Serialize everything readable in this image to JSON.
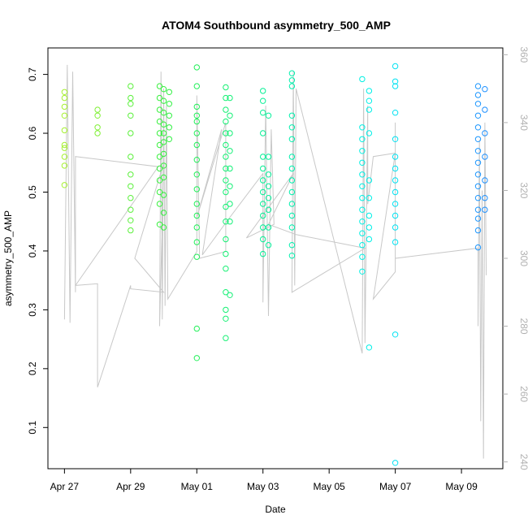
{
  "chart_data": {
    "type": "scatter",
    "title": "ATOM4 Southbound asymmetry_500_AMP",
    "xlabel": "Date",
    "ylabel": "asymmetry_500_AMP",
    "xlim": [
      "2015-04-26T12:00",
      "2015-05-10T06:00"
    ],
    "ylim": [
      0.03,
      0.745
    ],
    "x_ticks": [
      {
        "date": "2015-04-27",
        "label": "Apr 27"
      },
      {
        "date": "2015-04-29",
        "label": "Apr 29"
      },
      {
        "date": "2015-05-01",
        "label": "May 01"
      },
      {
        "date": "2015-05-03",
        "label": "May 03"
      },
      {
        "date": "2015-05-05",
        "label": "May 05"
      },
      {
        "date": "2015-05-07",
        "label": "May 07"
      },
      {
        "date": "2015-05-09",
        "label": "May 09"
      }
    ],
    "y_ticks": [
      "0.1",
      "0.2",
      "0.3",
      "0.4",
      "0.5",
      "0.6",
      "0.7"
    ],
    "y2_lim": [
      238,
      362
    ],
    "y2_ticks": [
      "240",
      "260",
      "280",
      "300",
      "320",
      "340",
      "360"
    ],
    "grid": false,
    "legend": "none",
    "point_color_gradient": [
      "#a6f030",
      "#2ef040",
      "#00f0a0",
      "#00f0f0",
      "#1e90ff"
    ],
    "line_color": "#c8c8c8",
    "points": [
      {
        "x": "2015-04-27T00:00",
        "y": 0.67
      },
      {
        "x": "2015-04-27T00:00",
        "y": 0.66
      },
      {
        "x": "2015-04-27T00:00",
        "y": 0.645
      },
      {
        "x": "2015-04-27T00:00",
        "y": 0.63
      },
      {
        "x": "2015-04-27T00:00",
        "y": 0.605
      },
      {
        "x": "2015-04-27T00:00",
        "y": 0.58
      },
      {
        "x": "2015-04-27T00:00",
        "y": 0.575
      },
      {
        "x": "2015-04-27T00:00",
        "y": 0.56
      },
      {
        "x": "2015-04-27T00:00",
        "y": 0.545
      },
      {
        "x": "2015-04-27T00:00",
        "y": 0.512
      },
      {
        "x": "2015-04-28T00:00",
        "y": 0.64
      },
      {
        "x": "2015-04-28T00:00",
        "y": 0.63
      },
      {
        "x": "2015-04-28T00:00",
        "y": 0.61
      },
      {
        "x": "2015-04-28T00:00",
        "y": 0.6
      },
      {
        "x": "2015-04-29T00:00",
        "y": 0.68
      },
      {
        "x": "2015-04-29T00:00",
        "y": 0.66
      },
      {
        "x": "2015-04-29T00:00",
        "y": 0.65
      },
      {
        "x": "2015-04-29T00:00",
        "y": 0.63
      },
      {
        "x": "2015-04-29T00:00",
        "y": 0.6
      },
      {
        "x": "2015-04-29T00:00",
        "y": 0.56
      },
      {
        "x": "2015-04-29T00:00",
        "y": 0.53
      },
      {
        "x": "2015-04-29T00:00",
        "y": 0.51
      },
      {
        "x": "2015-04-29T00:00",
        "y": 0.49
      },
      {
        "x": "2015-04-29T00:00",
        "y": 0.47
      },
      {
        "x": "2015-04-29T00:00",
        "y": 0.452
      },
      {
        "x": "2015-04-29T00:00",
        "y": 0.435
      },
      {
        "x": "2015-04-29T21:00",
        "y": 0.68
      },
      {
        "x": "2015-04-29T21:00",
        "y": 0.66
      },
      {
        "x": "2015-04-29T21:00",
        "y": 0.64
      },
      {
        "x": "2015-04-29T21:00",
        "y": 0.62
      },
      {
        "x": "2015-04-29T21:00",
        "y": 0.6
      },
      {
        "x": "2015-04-29T21:00",
        "y": 0.58
      },
      {
        "x": "2015-04-29T21:00",
        "y": 0.56
      },
      {
        "x": "2015-04-29T21:00",
        "y": 0.54
      },
      {
        "x": "2015-04-29T21:00",
        "y": 0.52
      },
      {
        "x": "2015-04-29T21:00",
        "y": 0.5
      },
      {
        "x": "2015-04-29T21:00",
        "y": 0.48
      },
      {
        "x": "2015-04-29T21:00",
        "y": 0.445
      },
      {
        "x": "2015-04-30T00:00",
        "y": 0.675
      },
      {
        "x": "2015-04-30T00:00",
        "y": 0.655
      },
      {
        "x": "2015-04-30T00:00",
        "y": 0.635
      },
      {
        "x": "2015-04-30T00:00",
        "y": 0.615
      },
      {
        "x": "2015-04-30T00:00",
        "y": 0.6
      },
      {
        "x": "2015-04-30T00:00",
        "y": 0.585
      },
      {
        "x": "2015-04-30T00:00",
        "y": 0.565
      },
      {
        "x": "2015-04-30T00:00",
        "y": 0.545
      },
      {
        "x": "2015-04-30T00:00",
        "y": 0.525
      },
      {
        "x": "2015-04-30T00:00",
        "y": 0.495
      },
      {
        "x": "2015-04-30T00:00",
        "y": 0.465
      },
      {
        "x": "2015-04-30T00:00",
        "y": 0.44
      },
      {
        "x": "2015-04-30T04:00",
        "y": 0.67
      },
      {
        "x": "2015-04-30T04:00",
        "y": 0.65
      },
      {
        "x": "2015-04-30T04:00",
        "y": 0.63
      },
      {
        "x": "2015-04-30T04:00",
        "y": 0.61
      },
      {
        "x": "2015-04-30T04:00",
        "y": 0.59
      },
      {
        "x": "2015-05-01T00:00",
        "y": 0.712
      },
      {
        "x": "2015-05-01T00:00",
        "y": 0.68
      },
      {
        "x": "2015-05-01T00:00",
        "y": 0.645
      },
      {
        "x": "2015-05-01T00:00",
        "y": 0.63
      },
      {
        "x": "2015-05-01T00:00",
        "y": 0.62
      },
      {
        "x": "2015-05-01T00:00",
        "y": 0.6
      },
      {
        "x": "2015-05-01T00:00",
        "y": 0.58
      },
      {
        "x": "2015-05-01T00:00",
        "y": 0.555
      },
      {
        "x": "2015-05-01T00:00",
        "y": 0.53
      },
      {
        "x": "2015-05-01T00:00",
        "y": 0.505
      },
      {
        "x": "2015-05-01T00:00",
        "y": 0.48
      },
      {
        "x": "2015-05-01T00:00",
        "y": 0.46
      },
      {
        "x": "2015-05-01T00:00",
        "y": 0.44
      },
      {
        "x": "2015-05-01T00:00",
        "y": 0.415
      },
      {
        "x": "2015-05-01T00:00",
        "y": 0.39
      },
      {
        "x": "2015-05-01T00:00",
        "y": 0.268
      },
      {
        "x": "2015-05-01T00:00",
        "y": 0.218
      },
      {
        "x": "2015-05-01T21:00",
        "y": 0.678
      },
      {
        "x": "2015-05-01T21:00",
        "y": 0.66
      },
      {
        "x": "2015-05-01T21:00",
        "y": 0.64
      },
      {
        "x": "2015-05-01T21:00",
        "y": 0.62
      },
      {
        "x": "2015-05-01T21:00",
        "y": 0.6
      },
      {
        "x": "2015-05-01T21:00",
        "y": 0.58
      },
      {
        "x": "2015-05-01T21:00",
        "y": 0.56
      },
      {
        "x": "2015-05-01T21:00",
        "y": 0.54
      },
      {
        "x": "2015-05-01T21:00",
        "y": 0.52
      },
      {
        "x": "2015-05-01T21:00",
        "y": 0.5
      },
      {
        "x": "2015-05-01T21:00",
        "y": 0.475
      },
      {
        "x": "2015-05-01T21:00",
        "y": 0.45
      },
      {
        "x": "2015-05-01T21:00",
        "y": 0.42
      },
      {
        "x": "2015-05-01T21:00",
        "y": 0.395
      },
      {
        "x": "2015-05-01T21:00",
        "y": 0.37
      },
      {
        "x": "2015-05-01T21:00",
        "y": 0.33
      },
      {
        "x": "2015-05-01T21:00",
        "y": 0.3
      },
      {
        "x": "2015-05-01T21:00",
        "y": 0.285
      },
      {
        "x": "2015-05-01T21:00",
        "y": 0.252
      },
      {
        "x": "2015-05-02T00:00",
        "y": 0.66
      },
      {
        "x": "2015-05-02T00:00",
        "y": 0.63
      },
      {
        "x": "2015-05-02T00:00",
        "y": 0.6
      },
      {
        "x": "2015-05-02T00:00",
        "y": 0.57
      },
      {
        "x": "2015-05-02T00:00",
        "y": 0.54
      },
      {
        "x": "2015-05-02T00:00",
        "y": 0.51
      },
      {
        "x": "2015-05-02T00:00",
        "y": 0.48
      },
      {
        "x": "2015-05-02T00:00",
        "y": 0.45
      },
      {
        "x": "2015-05-02T00:00",
        "y": 0.325
      },
      {
        "x": "2015-05-03T00:00",
        "y": 0.672
      },
      {
        "x": "2015-05-03T00:00",
        "y": 0.655
      },
      {
        "x": "2015-05-03T00:00",
        "y": 0.635
      },
      {
        "x": "2015-05-03T00:00",
        "y": 0.6
      },
      {
        "x": "2015-05-03T00:00",
        "y": 0.56
      },
      {
        "x": "2015-05-03T00:00",
        "y": 0.54
      },
      {
        "x": "2015-05-03T00:00",
        "y": 0.52
      },
      {
        "x": "2015-05-03T00:00",
        "y": 0.5
      },
      {
        "x": "2015-05-03T00:00",
        "y": 0.48
      },
      {
        "x": "2015-05-03T00:00",
        "y": 0.46
      },
      {
        "x": "2015-05-03T00:00",
        "y": 0.44
      },
      {
        "x": "2015-05-03T00:00",
        "y": 0.42
      },
      {
        "x": "2015-05-03T00:00",
        "y": 0.395
      },
      {
        "x": "2015-05-03T04:00",
        "y": 0.63
      },
      {
        "x": "2015-05-03T04:00",
        "y": 0.56
      },
      {
        "x": "2015-05-03T04:00",
        "y": 0.53
      },
      {
        "x": "2015-05-03T04:00",
        "y": 0.51
      },
      {
        "x": "2015-05-03T04:00",
        "y": 0.49
      },
      {
        "x": "2015-05-03T04:00",
        "y": 0.47
      },
      {
        "x": "2015-05-03T04:00",
        "y": 0.44
      },
      {
        "x": "2015-05-03T04:00",
        "y": 0.41
      },
      {
        "x": "2015-05-03T21:00",
        "y": 0.702
      },
      {
        "x": "2015-05-03T21:00",
        "y": 0.69
      },
      {
        "x": "2015-05-03T21:00",
        "y": 0.68
      },
      {
        "x": "2015-05-03T21:00",
        "y": 0.63
      },
      {
        "x": "2015-05-03T21:00",
        "y": 0.61
      },
      {
        "x": "2015-05-03T21:00",
        "y": 0.59
      },
      {
        "x": "2015-05-03T21:00",
        "y": 0.56
      },
      {
        "x": "2015-05-03T21:00",
        "y": 0.54
      },
      {
        "x": "2015-05-03T21:00",
        "y": 0.52
      },
      {
        "x": "2015-05-03T21:00",
        "y": 0.5
      },
      {
        "x": "2015-05-03T21:00",
        "y": 0.48
      },
      {
        "x": "2015-05-03T21:00",
        "y": 0.46
      },
      {
        "x": "2015-05-03T21:00",
        "y": 0.44
      },
      {
        "x": "2015-05-03T21:00",
        "y": 0.41
      },
      {
        "x": "2015-05-03T21:00",
        "y": 0.392
      },
      {
        "x": "2015-05-06T00:00",
        "y": 0.692
      },
      {
        "x": "2015-05-06T00:00",
        "y": 0.61
      },
      {
        "x": "2015-05-06T00:00",
        "y": 0.59
      },
      {
        "x": "2015-05-06T00:00",
        "y": 0.57
      },
      {
        "x": "2015-05-06T00:00",
        "y": 0.55
      },
      {
        "x": "2015-05-06T00:00",
        "y": 0.53
      },
      {
        "x": "2015-05-06T00:00",
        "y": 0.51
      },
      {
        "x": "2015-05-06T00:00",
        "y": 0.49
      },
      {
        "x": "2015-05-06T00:00",
        "y": 0.47
      },
      {
        "x": "2015-05-06T00:00",
        "y": 0.45
      },
      {
        "x": "2015-05-06T00:00",
        "y": 0.43
      },
      {
        "x": "2015-05-06T00:00",
        "y": 0.41
      },
      {
        "x": "2015-05-06T00:00",
        "y": 0.39
      },
      {
        "x": "2015-05-06T00:00",
        "y": 0.365
      },
      {
        "x": "2015-05-06T05:00",
        "y": 0.672
      },
      {
        "x": "2015-05-06T05:00",
        "y": 0.655
      },
      {
        "x": "2015-05-06T05:00",
        "y": 0.64
      },
      {
        "x": "2015-05-06T05:00",
        "y": 0.6
      },
      {
        "x": "2015-05-06T05:00",
        "y": 0.52
      },
      {
        "x": "2015-05-06T05:00",
        "y": 0.49
      },
      {
        "x": "2015-05-06T05:00",
        "y": 0.46
      },
      {
        "x": "2015-05-06T05:00",
        "y": 0.44
      },
      {
        "x": "2015-05-06T05:00",
        "y": 0.42
      },
      {
        "x": "2015-05-06T05:00",
        "y": 0.236
      },
      {
        "x": "2015-05-07T00:00",
        "y": 0.714
      },
      {
        "x": "2015-05-07T00:00",
        "y": 0.688
      },
      {
        "x": "2015-05-07T00:00",
        "y": 0.68
      },
      {
        "x": "2015-05-07T00:00",
        "y": 0.635
      },
      {
        "x": "2015-05-07T00:00",
        "y": 0.59
      },
      {
        "x": "2015-05-07T00:00",
        "y": 0.56
      },
      {
        "x": "2015-05-07T00:00",
        "y": 0.54
      },
      {
        "x": "2015-05-07T00:00",
        "y": 0.52
      },
      {
        "x": "2015-05-07T00:00",
        "y": 0.5
      },
      {
        "x": "2015-05-07T00:00",
        "y": 0.48
      },
      {
        "x": "2015-05-07T00:00",
        "y": 0.46
      },
      {
        "x": "2015-05-07T00:00",
        "y": 0.44
      },
      {
        "x": "2015-05-07T00:00",
        "y": 0.415
      },
      {
        "x": "2015-05-07T00:00",
        "y": 0.258
      },
      {
        "x": "2015-05-07T00:00",
        "y": 0.04
      },
      {
        "x": "2015-05-09T12:00",
        "y": 0.68
      },
      {
        "x": "2015-05-09T12:00",
        "y": 0.665
      },
      {
        "x": "2015-05-09T12:00",
        "y": 0.65
      },
      {
        "x": "2015-05-09T12:00",
        "y": 0.63
      },
      {
        "x": "2015-05-09T12:00",
        "y": 0.61
      },
      {
        "x": "2015-05-09T12:00",
        "y": 0.59
      },
      {
        "x": "2015-05-09T12:00",
        "y": 0.57
      },
      {
        "x": "2015-05-09T12:00",
        "y": 0.55
      },
      {
        "x": "2015-05-09T12:00",
        "y": 0.53
      },
      {
        "x": "2015-05-09T12:00",
        "y": 0.51
      },
      {
        "x": "2015-05-09T12:00",
        "y": 0.49
      },
      {
        "x": "2015-05-09T12:00",
        "y": 0.47
      },
      {
        "x": "2015-05-09T12:00",
        "y": 0.455
      },
      {
        "x": "2015-05-09T12:00",
        "y": 0.435
      },
      {
        "x": "2015-05-09T12:00",
        "y": 0.406
      },
      {
        "x": "2015-05-09T17:00",
        "y": 0.675
      },
      {
        "x": "2015-05-09T17:00",
        "y": 0.64
      },
      {
        "x": "2015-05-09T17:00",
        "y": 0.6
      },
      {
        "x": "2015-05-09T17:00",
        "y": 0.56
      },
      {
        "x": "2015-05-09T17:00",
        "y": 0.52
      },
      {
        "x": "2015-05-09T17:00",
        "y": 0.49
      },
      {
        "x": "2015-05-09T17:00",
        "y": 0.47
      }
    ],
    "line_y2": [
      {
        "x": "2015-04-27T00:00",
        "y": 282
      },
      {
        "x": "2015-04-27T02:00",
        "y": 357
      },
      {
        "x": "2015-04-27T04:00",
        "y": 281
      },
      {
        "x": "2015-04-27T06:00",
        "y": 355
      },
      {
        "x": "2015-04-27T08:00",
        "y": 290
      },
      {
        "x": "2015-04-27T08:00",
        "y": 330
      },
      {
        "x": "2015-04-29T00:00",
        "y": 328
      },
      {
        "x": "2015-04-29T20:00",
        "y": 327
      },
      {
        "x": "2015-04-27T08:00",
        "y": 292
      },
      {
        "x": "2015-04-28T00:00",
        "y": 292.5
      },
      {
        "x": "2015-04-28T00:00",
        "y": 268
      },
      {
        "x": "2015-04-28T00:00",
        "y": 275
      },
      {
        "x": "2015-04-28T00:00",
        "y": 262
      },
      {
        "x": "2015-04-29T00:00",
        "y": 292
      },
      {
        "x": "2015-04-29T00:00",
        "y": 291
      },
      {
        "x": "2015-04-30T00:00",
        "y": 290
      },
      {
        "x": "2015-04-29T03:00",
        "y": 300
      },
      {
        "x": "2015-04-30T00:00",
        "y": 328
      },
      {
        "x": "2015-04-29T21:00",
        "y": 280
      },
      {
        "x": "2015-04-29T22:00",
        "y": 355
      },
      {
        "x": "2015-04-29T23:00",
        "y": 282
      },
      {
        "x": "2015-04-30T00:00",
        "y": 350
      },
      {
        "x": "2015-04-30T01:00",
        "y": 286
      },
      {
        "x": "2015-04-30T02:00",
        "y": 345
      },
      {
        "x": "2015-04-30T03:00",
        "y": 288
      },
      {
        "x": "2015-05-01T00:00",
        "y": 302
      },
      {
        "x": "2015-05-01T00:00",
        "y": 348
      },
      {
        "x": "2015-05-01T02:00",
        "y": 300
      },
      {
        "x": "2015-05-01T21:00",
        "y": 302
      },
      {
        "x": "2015-05-01T21:00",
        "y": 340
      },
      {
        "x": "2015-05-01T00:00",
        "y": 312
      },
      {
        "x": "2015-05-01T18:00",
        "y": 338
      },
      {
        "x": "2015-05-01T04:00",
        "y": 301
      },
      {
        "x": "2015-05-01T22:00",
        "y": 311
      },
      {
        "x": "2015-05-03T00:00",
        "y": 325
      },
      {
        "x": "2015-05-03T00:00",
        "y": 287
      },
      {
        "x": "2015-05-03T02:00",
        "y": 345
      },
      {
        "x": "2015-05-03T04:00",
        "y": 283
      },
      {
        "x": "2015-05-03T06:00",
        "y": 338
      },
      {
        "x": "2015-05-03T08:00",
        "y": 310
      },
      {
        "x": "2015-05-02T12:00",
        "y": 306
      },
      {
        "x": "2015-05-03T22:00",
        "y": 325
      },
      {
        "x": "2015-05-03T04:00",
        "y": 310
      },
      {
        "x": "2015-05-04T00:00",
        "y": 307
      },
      {
        "x": "2015-05-06T02:00",
        "y": 303
      },
      {
        "x": "2015-05-03T21:00",
        "y": 290
      },
      {
        "x": "2015-05-03T22:00",
        "y": 355
      },
      {
        "x": "2015-05-03T23:00",
        "y": 292
      },
      {
        "x": "2015-05-04T00:00",
        "y": 350
      },
      {
        "x": "2015-05-06T00:00",
        "y": 272
      },
      {
        "x": "2015-05-06T01:00",
        "y": 350
      },
      {
        "x": "2015-05-06T02:00",
        "y": 275
      },
      {
        "x": "2015-05-06T04:00",
        "y": 345
      },
      {
        "x": "2015-05-06T04:00",
        "y": 316
      },
      {
        "x": "2015-05-06T08:00",
        "y": 330
      },
      {
        "x": "2015-05-07T00:00",
        "y": 331
      },
      {
        "x": "2015-05-06T08:00",
        "y": 288
      },
      {
        "x": "2015-05-07T00:00",
        "y": 296
      },
      {
        "x": "2015-05-07T00:00",
        "y": 340
      },
      {
        "x": "2015-05-07T00:00",
        "y": 300
      },
      {
        "x": "2015-05-09T12:00",
        "y": 303
      },
      {
        "x": "2015-05-09T12:00",
        "y": 280
      },
      {
        "x": "2015-05-09T13:00",
        "y": 335
      },
      {
        "x": "2015-05-09T14:00",
        "y": 252
      },
      {
        "x": "2015-05-09T15:00",
        "y": 320
      },
      {
        "x": "2015-05-09T16:00",
        "y": 241
      },
      {
        "x": "2015-05-09T17:00",
        "y": 340
      },
      {
        "x": "2015-05-09T18:00",
        "y": 295
      }
    ]
  }
}
